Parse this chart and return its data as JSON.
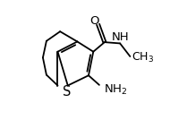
{
  "figsize": [
    1.9,
    1.34
  ],
  "dpi": 100,
  "background_color": "#ffffff",
  "xlim": [
    0.0,
    1.0
  ],
  "ylim": [
    0.0,
    1.0
  ]
}
